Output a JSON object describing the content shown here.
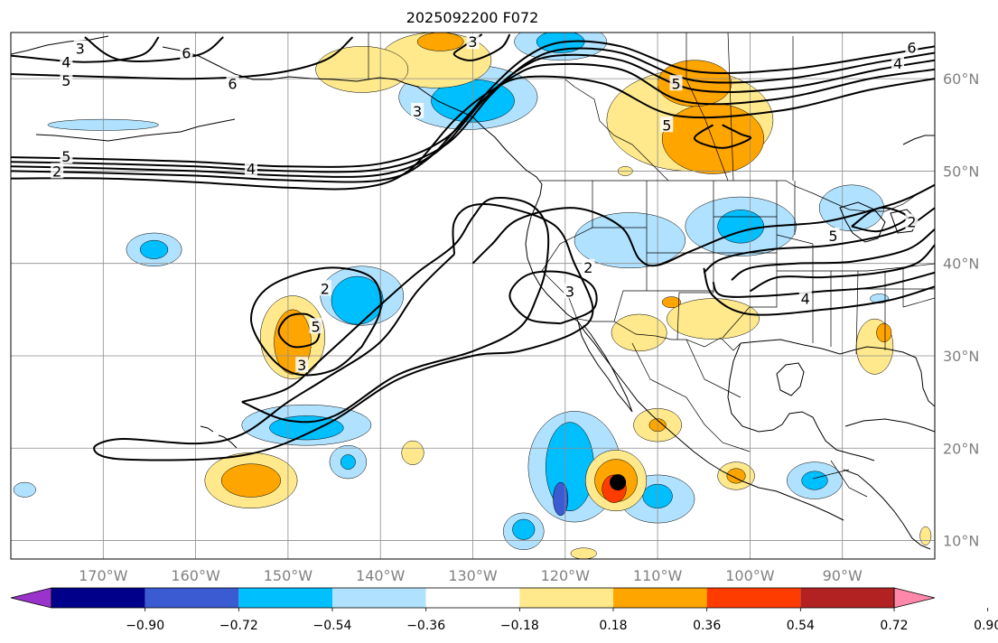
{
  "title": "2025092200 F072",
  "map": {
    "lon_range": [
      -180,
      -80
    ],
    "lat_range": [
      8,
      65
    ],
    "lon_ticks": [
      {
        "value": -170,
        "label": "170°W"
      },
      {
        "value": -160,
        "label": "160°W"
      },
      {
        "value": -150,
        "label": "150°W"
      },
      {
        "value": -140,
        "label": "140°W"
      },
      {
        "value": -130,
        "label": "130°W"
      },
      {
        "value": -120,
        "label": "120°W"
      },
      {
        "value": -110,
        "label": "110°W"
      },
      {
        "value": -100,
        "label": "100°W"
      },
      {
        "value": -90,
        "label": "90°W"
      }
    ],
    "lat_ticks": [
      {
        "value": 10,
        "label": "10°N"
      },
      {
        "value": 20,
        "label": "20°N"
      },
      {
        "value": 30,
        "label": "30°N"
      },
      {
        "value": 40,
        "label": "40°N"
      },
      {
        "value": 50,
        "label": "50°N"
      },
      {
        "value": 60,
        "label": "60°N"
      }
    ],
    "grid": true,
    "marker": {
      "lon": -114.3,
      "lat": 16.3,
      "color": "#000000"
    }
  },
  "contour_labels": [
    {
      "text": "4",
      "lon": -174,
      "lat": 61.8
    },
    {
      "text": "5",
      "lon": -174,
      "lat": 59.8
    },
    {
      "text": "6",
      "lon": -156,
      "lat": 59.5
    },
    {
      "text": "6",
      "lon": -161,
      "lat": 62.8
    },
    {
      "text": "3",
      "lon": -172.5,
      "lat": 63.3
    },
    {
      "text": "5",
      "lon": -174,
      "lat": 51.6
    },
    {
      "text": "2",
      "lon": -175,
      "lat": 50.0
    },
    {
      "text": "4",
      "lon": -154,
      "lat": 50.3
    },
    {
      "text": "3",
      "lon": -130,
      "lat": 64.0
    },
    {
      "text": "3",
      "lon": -136,
      "lat": 56.5
    },
    {
      "text": "5",
      "lon": -108,
      "lat": 59.5
    },
    {
      "text": "5",
      "lon": -109,
      "lat": 55.0
    },
    {
      "text": "6",
      "lon": -82.5,
      "lat": 63.4
    },
    {
      "text": "4",
      "lon": -84,
      "lat": 61.7
    },
    {
      "text": "2",
      "lon": -117.5,
      "lat": 39.6
    },
    {
      "text": "3",
      "lon": -119.5,
      "lat": 37.0
    },
    {
      "text": "2",
      "lon": -146,
      "lat": 37.3
    },
    {
      "text": "5",
      "lon": -147,
      "lat": 33.2
    },
    {
      "text": "3",
      "lon": -148.5,
      "lat": 29.0
    },
    {
      "text": "4",
      "lon": -94,
      "lat": 36.2
    },
    {
      "text": "5",
      "lon": -91,
      "lat": 43.0
    },
    {
      "text": "2",
      "lon": -82.5,
      "lat": 44.5
    }
  ],
  "colorbar": {
    "colors": [
      "#9933cc",
      "#00008b",
      "#3a5bd1",
      "#00bfff",
      "#b0e2ff",
      "#ffffff",
      "#ffe98c",
      "#ffa500",
      "#ff3c00",
      "#b22222",
      "#ff88aa"
    ],
    "tick_labels": [
      "−0.90",
      "−0.72",
      "−0.54",
      "−0.36",
      "−0.18",
      "0.18",
      "0.36",
      "0.54",
      "0.72",
      "0.90"
    ]
  },
  "shading": [
    {
      "color": "#b0e2ff",
      "cells": [
        [
          -142,
          36.5,
          4.5,
          3.2
        ],
        [
          -130.5,
          58,
          7.5,
          3.5
        ],
        [
          -113,
          42.5,
          6,
          3
        ],
        [
          -101,
          44,
          6,
          3.2
        ],
        [
          -119,
          18,
          5,
          6
        ],
        [
          -148,
          22.5,
          7,
          2.2
        ],
        [
          -164.5,
          41.5,
          3,
          1.8
        ],
        [
          -110,
          14.5,
          4,
          2.6
        ],
        [
          -93,
          16.5,
          3,
          2
        ],
        [
          -124.5,
          11,
          2.2,
          2
        ],
        [
          -143.5,
          18.5,
          2,
          1.8
        ],
        [
          -170,
          55,
          6,
          0.6
        ],
        [
          -120.5,
          64,
          5,
          2
        ],
        [
          -178.5,
          15.5,
          1.2,
          0.8
        ],
        [
          -86,
          36.2,
          1,
          0.5
        ],
        [
          -89,
          46,
          3.5,
          2.5
        ]
      ]
    },
    {
      "color": "#00bfff",
      "cells": [
        [
          -142.5,
          36,
          2.8,
          2.6
        ],
        [
          -130,
          57.6,
          4.5,
          2.3
        ],
        [
          -101,
          44,
          2.5,
          1.8
        ],
        [
          -119.5,
          18,
          2.6,
          4.8
        ],
        [
          -148,
          22.2,
          4,
          1.3
        ],
        [
          -164.5,
          41.5,
          1.5,
          1
        ],
        [
          -110,
          14.8,
          1.6,
          1.3
        ],
        [
          -93,
          16.5,
          1.4,
          1
        ],
        [
          -124.5,
          11.2,
          1.2,
          1.1
        ],
        [
          -120.5,
          64,
          2.6,
          1.2
        ],
        [
          -143.5,
          18.5,
          0.8,
          0.8
        ]
      ]
    },
    {
      "color": "#3a5bd1",
      "cells": [
        [
          -120.5,
          14.5,
          0.8,
          1.8
        ]
      ]
    },
    {
      "color": "#ffe98c",
      "cells": [
        [
          -149.5,
          32,
          3.5,
          4.5
        ],
        [
          -106.5,
          55.5,
          9,
          5.5
        ],
        [
          -134,
          62,
          6,
          3
        ],
        [
          -142,
          61,
          5,
          2.5
        ],
        [
          -114.5,
          16.5,
          3.3,
          3.3
        ],
        [
          -110,
          22.5,
          2.6,
          1.8
        ],
        [
          -154,
          16.5,
          5,
          3
        ],
        [
          -104,
          34,
          5,
          2.2
        ],
        [
          -112,
          32.5,
          3,
          2
        ],
        [
          -86.5,
          31,
          2,
          3
        ],
        [
          -101.5,
          17,
          2,
          1.5
        ],
        [
          -136.5,
          19.5,
          1.2,
          1.3
        ],
        [
          -113.5,
          50,
          0.8,
          0.5
        ],
        [
          -81,
          10.5,
          0.6,
          1
        ],
        [
          -118,
          8.6,
          1.4,
          0.6
        ]
      ]
    },
    {
      "color": "#ffa500",
      "cells": [
        [
          -149.5,
          31.5,
          2,
          3.5
        ],
        [
          -104,
          53.5,
          5.5,
          3.8
        ],
        [
          -106,
          59.5,
          4,
          2.5
        ],
        [
          -114.5,
          16.5,
          2.3,
          2.3
        ],
        [
          -154,
          16.5,
          3.2,
          1.8
        ],
        [
          -110,
          22.5,
          0.9,
          0.7
        ],
        [
          -101.5,
          17,
          1,
          0.8
        ],
        [
          -133.5,
          64,
          2.5,
          1
        ],
        [
          -108.5,
          35.8,
          1,
          0.6
        ],
        [
          -85.5,
          32.5,
          0.8,
          1
        ]
      ]
    },
    {
      "color": "#ff3c00",
      "cells": [
        [
          -114.7,
          15.6,
          1.3,
          1.5
        ]
      ]
    }
  ],
  "contours": [
    [
      [
        -180,
        51.5
      ],
      [
        -170,
        51.3
      ],
      [
        -160,
        51.0
      ],
      [
        -150,
        50.5
      ],
      [
        -140,
        50.8
      ],
      [
        -133,
        53.5
      ],
      [
        -128,
        59
      ],
      [
        -124,
        62.5
      ],
      [
        -120,
        64
      ],
      [
        -114,
        63.5
      ],
      [
        -106,
        60.8
      ],
      [
        -96,
        61
      ],
      [
        -86,
        62.5
      ],
      [
        -80,
        63.5
      ]
    ],
    [
      [
        -180,
        51.0
      ],
      [
        -170,
        50.8
      ],
      [
        -160,
        50.5
      ],
      [
        -150,
        50.0
      ],
      [
        -140,
        50.2
      ],
      [
        -133,
        52.8
      ],
      [
        -128,
        58.3
      ],
      [
        -124,
        61.8
      ],
      [
        -120,
        63.2
      ],
      [
        -114,
        62.8
      ],
      [
        -106,
        59.8
      ],
      [
        -96,
        60
      ],
      [
        -86,
        61.8
      ],
      [
        -80,
        62.8
      ]
    ],
    [
      [
        -180,
        50.5
      ],
      [
        -170,
        50.3
      ],
      [
        -160,
        50.0
      ],
      [
        -150,
        49.5
      ],
      [
        -140,
        49.6
      ],
      [
        -134,
        52
      ],
      [
        -129,
        57.5
      ],
      [
        -125,
        61
      ],
      [
        -121,
        62.5
      ],
      [
        -114,
        62
      ],
      [
        -106,
        58.8
      ],
      [
        -96,
        59
      ],
      [
        -86,
        61
      ],
      [
        -80,
        62
      ]
    ],
    [
      [
        -180,
        50.0
      ],
      [
        -170,
        49.8
      ],
      [
        -160,
        49.5
      ],
      [
        -150,
        49.0
      ],
      [
        -140,
        49.0
      ],
      [
        -135,
        51.2
      ],
      [
        -130,
        56.6
      ],
      [
        -126,
        60
      ],
      [
        -122,
        61.5
      ],
      [
        -114,
        61
      ],
      [
        -107,
        57.5
      ],
      [
        -97,
        57.8
      ],
      [
        -87,
        60
      ],
      [
        -80,
        61
      ]
    ],
    [
      [
        -180,
        49.2
      ],
      [
        -170,
        49.2
      ],
      [
        -160,
        48.8
      ],
      [
        -150,
        48.2
      ],
      [
        -142,
        48.2
      ],
      [
        -137,
        50
      ],
      [
        -132,
        55.5
      ],
      [
        -128,
        58.7
      ],
      [
        -124,
        60.2
      ],
      [
        -116,
        59.5
      ],
      [
        -108,
        56
      ],
      [
        -97,
        56.5
      ],
      [
        -87,
        58.8
      ],
      [
        -80,
        60
      ]
    ],
    [
      [
        -180,
        62.5
      ],
      [
        -172,
        61.8
      ],
      [
        -166,
        62.5
      ],
      [
        -164,
        64.5
      ]
    ],
    [
      [
        -180,
        60.5
      ],
      [
        -170,
        60.2
      ],
      [
        -160,
        60
      ],
      [
        -152,
        60.5
      ],
      [
        -146,
        62
      ],
      [
        -143,
        64.5
      ]
    ],
    [
      [
        -172,
        64.5
      ],
      [
        -168,
        62
      ],
      [
        -160,
        62.5
      ],
      [
        -157,
        64.5
      ]
    ],
    [
      [
        -129,
        64.8
      ],
      [
        -131,
        63.5
      ],
      [
        -132,
        62.6
      ],
      [
        -130,
        62
      ],
      [
        -127,
        63.3
      ],
      [
        -126,
        64.8
      ]
    ],
    [
      [
        -103,
        55
      ],
      [
        -101,
        54
      ],
      [
        -100,
        53.5
      ],
      [
        -103,
        52.5
      ],
      [
        -106,
        53.5
      ],
      [
        -104,
        55
      ]
    ],
    [
      [
        -130,
        40
      ],
      [
        -128,
        42
      ],
      [
        -125,
        44.8
      ],
      [
        -119,
        46
      ],
      [
        -114,
        44
      ],
      [
        -112,
        40.5
      ],
      [
        -110,
        39.8
      ],
      [
        -106,
        41.5
      ],
      [
        -100,
        43.7
      ],
      [
        -92,
        44.5
      ],
      [
        -86,
        46
      ],
      [
        -83,
        47
      ],
      [
        -80,
        48.5
      ]
    ],
    [
      [
        -105,
        39
      ],
      [
        -103,
        40.5
      ],
      [
        -98,
        41.5
      ],
      [
        -91,
        42
      ],
      [
        -84,
        43.5
      ],
      [
        -80,
        46
      ]
    ],
    [
      [
        -102,
        38.2
      ],
      [
        -100,
        39.5
      ],
      [
        -95,
        40
      ],
      [
        -89,
        40.2
      ],
      [
        -83,
        41.5
      ],
      [
        -80,
        43.7
      ]
    ],
    [
      [
        -100,
        37
      ],
      [
        -97,
        38.5
      ],
      [
        -92,
        38.5
      ],
      [
        -86,
        39
      ],
      [
        -82,
        40
      ],
      [
        -80,
        42
      ]
    ],
    [
      [
        -104,
        38
      ],
      [
        -103,
        36.5
      ],
      [
        -98,
        36.5
      ],
      [
        -92,
        37
      ],
      [
        -86,
        37.5
      ],
      [
        -80,
        39
      ]
    ],
    [
      [
        -105,
        39.5
      ],
      [
        -104,
        36.5
      ],
      [
        -100,
        34.5
      ],
      [
        -92,
        35
      ],
      [
        -85,
        36
      ],
      [
        -80,
        37.5
      ]
    ],
    [
      [
        -89,
        44
      ],
      [
        -86,
        46
      ],
      [
        -83,
        45
      ],
      [
        -86,
        43.5
      ],
      [
        -89,
        44
      ]
    ],
    [
      [
        -120.5,
        33.5
      ],
      [
        -124,
        34
      ],
      [
        -126,
        36.5
      ],
      [
        -124,
        38.8
      ],
      [
        -120,
        39
      ],
      [
        -117,
        37.5
      ],
      [
        -117,
        35
      ],
      [
        -120.5,
        33.5
      ]
    ],
    [
      [
        -142,
        31
      ],
      [
        -140,
        35
      ],
      [
        -141,
        38.5
      ],
      [
        -146,
        39.5
      ],
      [
        -152,
        37.5
      ],
      [
        -154,
        34
      ],
      [
        -152,
        30
      ],
      [
        -149,
        28
      ],
      [
        -145,
        28.5
      ],
      [
        -142,
        31
      ]
    ],
    [
      [
        -146.5,
        33.5
      ],
      [
        -147,
        31.5
      ],
      [
        -149.5,
        31
      ],
      [
        -151,
        32.5
      ],
      [
        -150,
        34.2
      ],
      [
        -148,
        34.5
      ],
      [
        -146.5,
        33.5
      ]
    ],
    [
      [
        -132,
        41
      ],
      [
        -136,
        37
      ],
      [
        -140,
        31.5
      ],
      [
        -146,
        27.5
      ],
      [
        -150,
        25
      ],
      [
        -155,
        21.5
      ],
      [
        -160,
        20.5
      ],
      [
        -168,
        21
      ],
      [
        -171,
        20
      ],
      [
        -168,
        18.8
      ],
      [
        -155,
        19.2
      ],
      [
        -146,
        22.5
      ],
      [
        -138,
        27.5
      ],
      [
        -130,
        30
      ],
      [
        -125,
        30.5
      ],
      [
        -119,
        32.5
      ],
      [
        -117,
        35
      ],
      [
        -119,
        40
      ],
      [
        -121,
        44
      ],
      [
        -126,
        46
      ],
      [
        -130,
        46.3
      ],
      [
        -132,
        44.5
      ],
      [
        -132,
        41
      ]
    ],
    [
      [
        -155,
        25
      ],
      [
        -150,
        26.5
      ],
      [
        -146,
        30
      ],
      [
        -140,
        35.5
      ],
      [
        -136,
        39
      ],
      [
        -132,
        42
      ],
      [
        -130,
        45
      ],
      [
        -128,
        47
      ],
      [
        -124,
        46.5
      ],
      [
        -122,
        44
      ],
      [
        -122,
        40
      ],
      [
        -123,
        36.5
      ],
      [
        -125,
        33
      ],
      [
        -130,
        30.5
      ],
      [
        -138,
        28
      ],
      [
        -145,
        23.5
      ],
      [
        -150,
        23
      ],
      [
        -155,
        25
      ]
    ]
  ]
}
